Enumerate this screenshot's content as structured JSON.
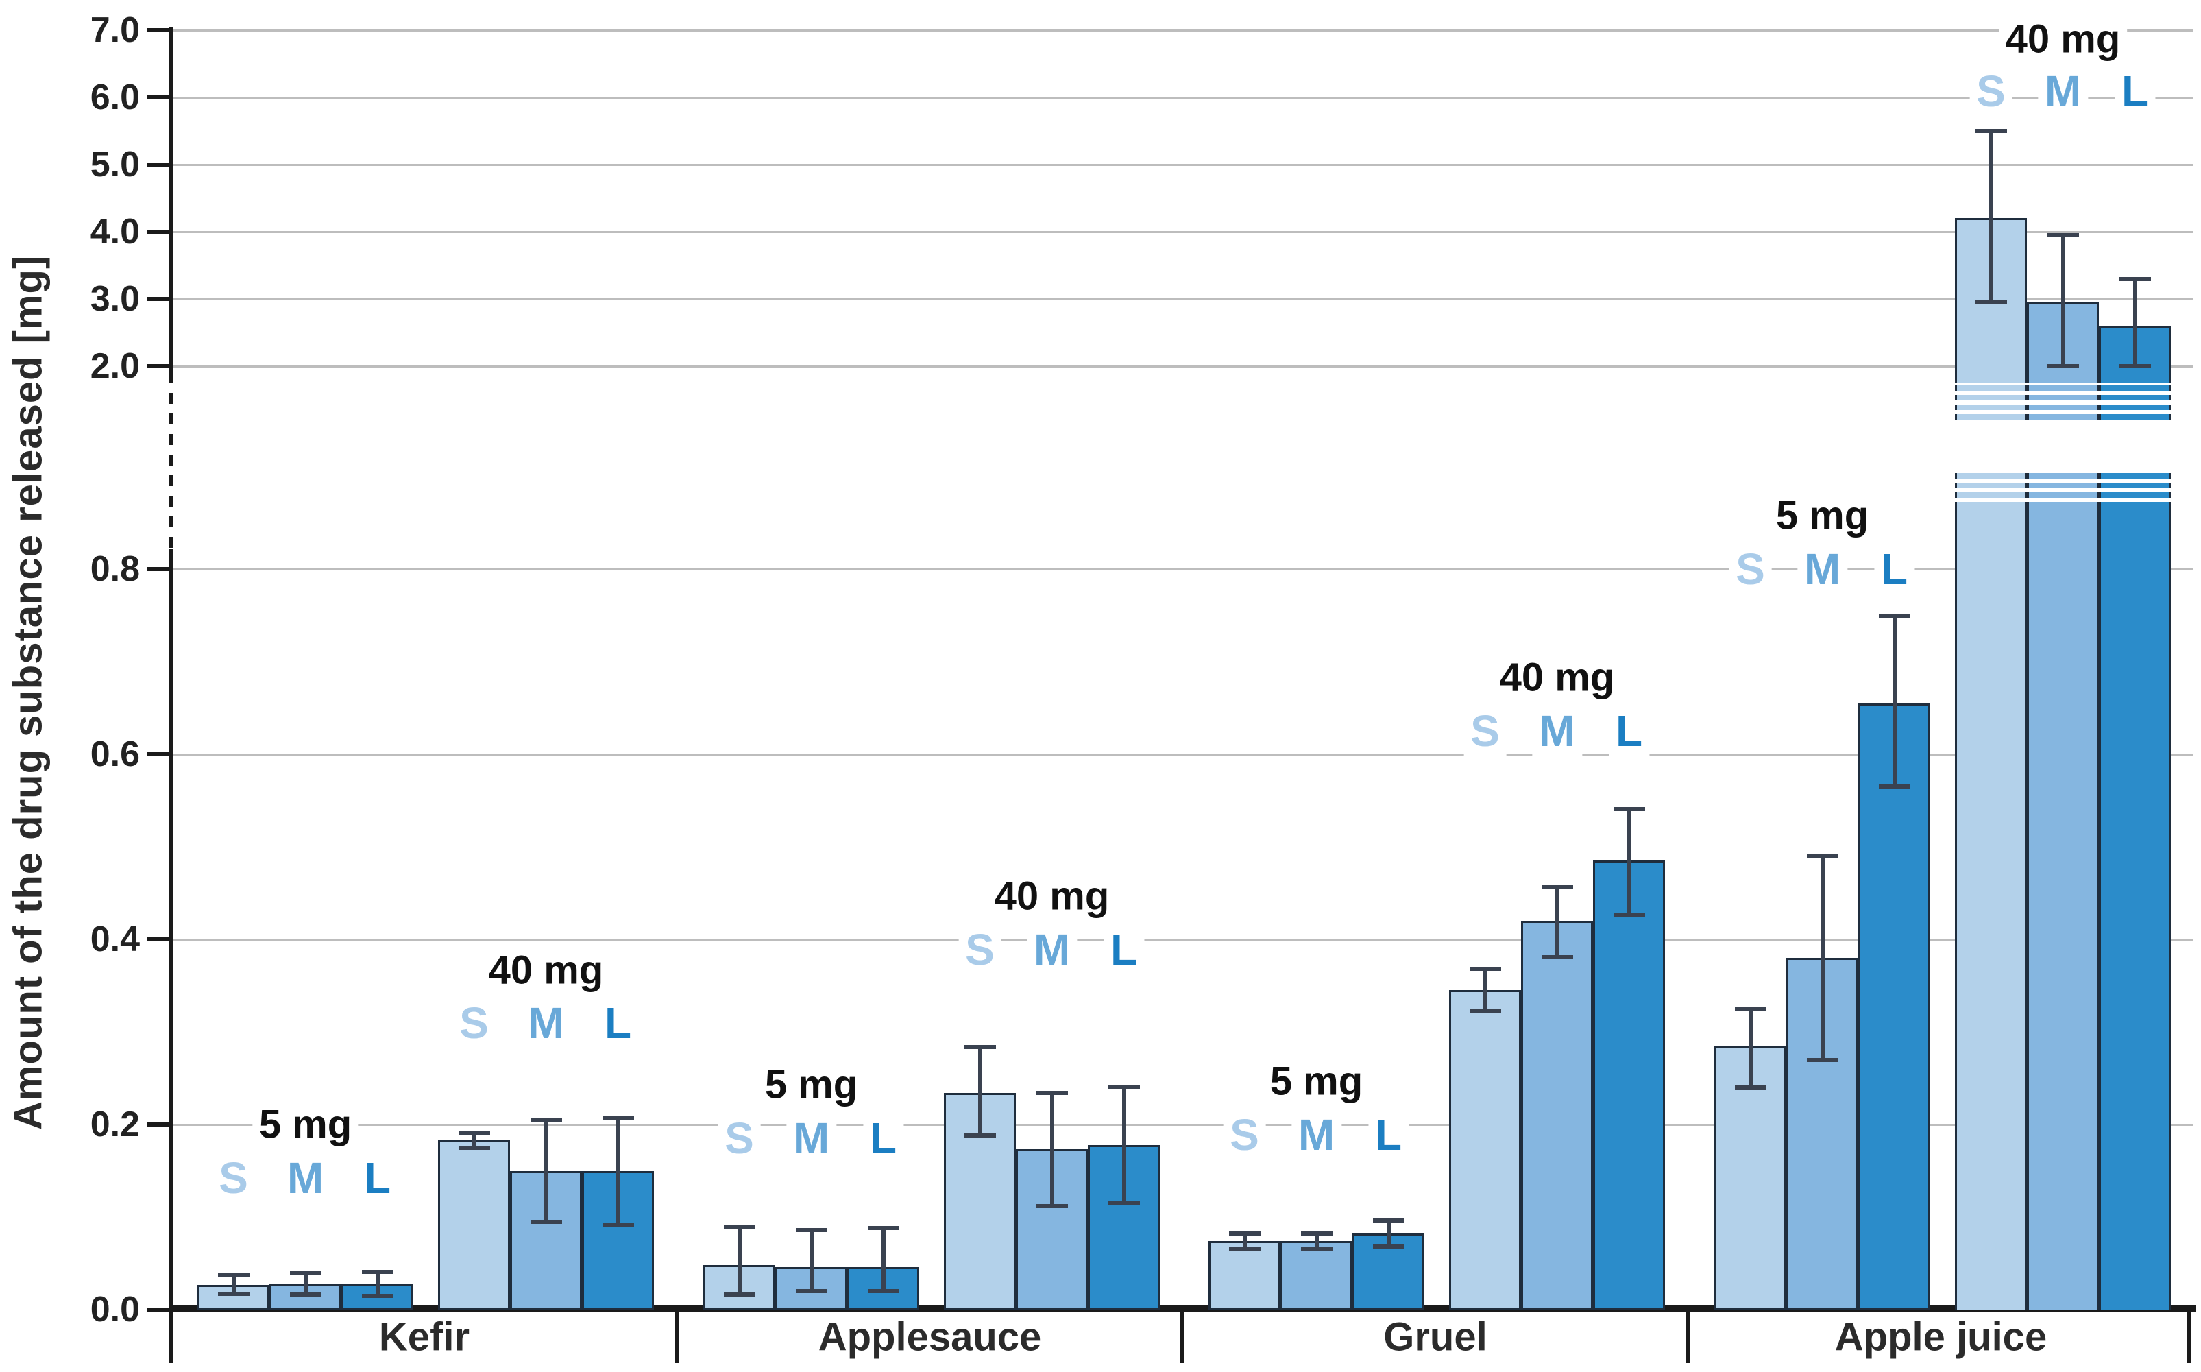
{
  "chart_data": {
    "type": "bar",
    "ylabel": "Amount of the drug substance released [mg]",
    "y_axis": {
      "broken": true,
      "upper_tick_labels": [
        "7.0",
        "6.0",
        "5.0",
        "4.0",
        "3.0",
        "2.0"
      ],
      "upper_tick_values": [
        7.0,
        6.0,
        5.0,
        4.0,
        3.0,
        2.0
      ],
      "lower_tick_labels": [
        "0.8",
        "0.6",
        "0.4",
        "0.2",
        "0.0"
      ],
      "lower_tick_values": [
        0.8,
        0.6,
        0.4,
        0.2,
        0.0
      ],
      "lower_range": [
        0.0,
        0.85
      ],
      "upper_range": [
        2.0,
        7.0
      ]
    },
    "categories": [
      "Kefir",
      "Applesauce",
      "Gruel",
      "Apple juice"
    ],
    "doses": [
      "5 mg",
      "40 mg"
    ],
    "sizes": [
      "S",
      "M",
      "L"
    ],
    "bar_colors": {
      "S": "#b3d1ea",
      "M": "#85b6e0",
      "L": "#2b8cca"
    },
    "letter_colors": {
      "S": "#a9cbe9",
      "M": "#68a8d8",
      "L": "#1b7ec2"
    },
    "grid": true,
    "groups": [
      {
        "category": "Kefir",
        "subgroups": [
          {
            "dose": "5 mg",
            "scale": "lower",
            "bars": [
              {
                "size": "S",
                "value": 0.027,
                "err_lo": 0.017,
                "err_hi": 0.038
              },
              {
                "size": "M",
                "value": 0.028,
                "err_lo": 0.016,
                "err_hi": 0.04
              },
              {
                "size": "L",
                "value": 0.028,
                "err_lo": 0.015,
                "err_hi": 0.041
              }
            ]
          },
          {
            "dose": "40 mg",
            "scale": "lower",
            "bars": [
              {
                "size": "S",
                "value": 0.183,
                "err_lo": 0.175,
                "err_hi": 0.191
              },
              {
                "size": "M",
                "value": 0.15,
                "err_lo": 0.095,
                "err_hi": 0.205
              },
              {
                "size": "L",
                "value": 0.15,
                "err_lo": 0.092,
                "err_hi": 0.207
              }
            ]
          }
        ]
      },
      {
        "category": "Applesauce",
        "subgroups": [
          {
            "dose": "5 mg",
            "scale": "lower",
            "bars": [
              {
                "size": "S",
                "value": 0.048,
                "err_lo": 0.016,
                "err_hi": 0.09
              },
              {
                "size": "M",
                "value": 0.046,
                "err_lo": 0.02,
                "err_hi": 0.086
              },
              {
                "size": "L",
                "value": 0.046,
                "err_lo": 0.02,
                "err_hi": 0.088
              }
            ]
          },
          {
            "dose": "40 mg",
            "scale": "lower",
            "bars": [
              {
                "size": "S",
                "value": 0.234,
                "err_lo": 0.188,
                "err_hi": 0.284
              },
              {
                "size": "M",
                "value": 0.173,
                "err_lo": 0.112,
                "err_hi": 0.234
              },
              {
                "size": "L",
                "value": 0.178,
                "err_lo": 0.115,
                "err_hi": 0.241
              }
            ]
          }
        ]
      },
      {
        "category": "Gruel",
        "subgroups": [
          {
            "dose": "5 mg",
            "scale": "lower",
            "bars": [
              {
                "size": "S",
                "value": 0.074,
                "err_lo": 0.066,
                "err_hi": 0.082
              },
              {
                "size": "M",
                "value": 0.074,
                "err_lo": 0.066,
                "err_hi": 0.082
              },
              {
                "size": "L",
                "value": 0.082,
                "err_lo": 0.068,
                "err_hi": 0.096
              }
            ]
          },
          {
            "dose": "40 mg",
            "scale": "lower",
            "bars": [
              {
                "size": "S",
                "value": 0.345,
                "err_lo": 0.322,
                "err_hi": 0.368
              },
              {
                "size": "M",
                "value": 0.42,
                "err_lo": 0.381,
                "err_hi": 0.456
              },
              {
                "size": "L",
                "value": 0.485,
                "err_lo": 0.426,
                "err_hi": 0.541
              }
            ]
          }
        ]
      },
      {
        "category": "Apple juice",
        "subgroups": [
          {
            "dose": "5 mg",
            "scale": "lower",
            "bars": [
              {
                "size": "S",
                "value": 0.285,
                "err_lo": 0.24,
                "err_hi": 0.325
              },
              {
                "size": "M",
                "value": 0.38,
                "err_lo": 0.27,
                "err_hi": 0.49
              },
              {
                "size": "L",
                "value": 0.655,
                "err_lo": 0.565,
                "err_hi": 0.75
              }
            ]
          },
          {
            "dose": "40 mg",
            "scale": "upper",
            "broken": true,
            "bars": [
              {
                "size": "S",
                "value": 4.2,
                "err_lo": 2.95,
                "err_hi": 5.5
              },
              {
                "size": "M",
                "value": 2.95,
                "err_lo": 2.0,
                "err_hi": 3.95
              },
              {
                "size": "L",
                "value": 2.6,
                "err_lo": 2.0,
                "err_hi": 3.3
              }
            ]
          }
        ]
      }
    ]
  }
}
